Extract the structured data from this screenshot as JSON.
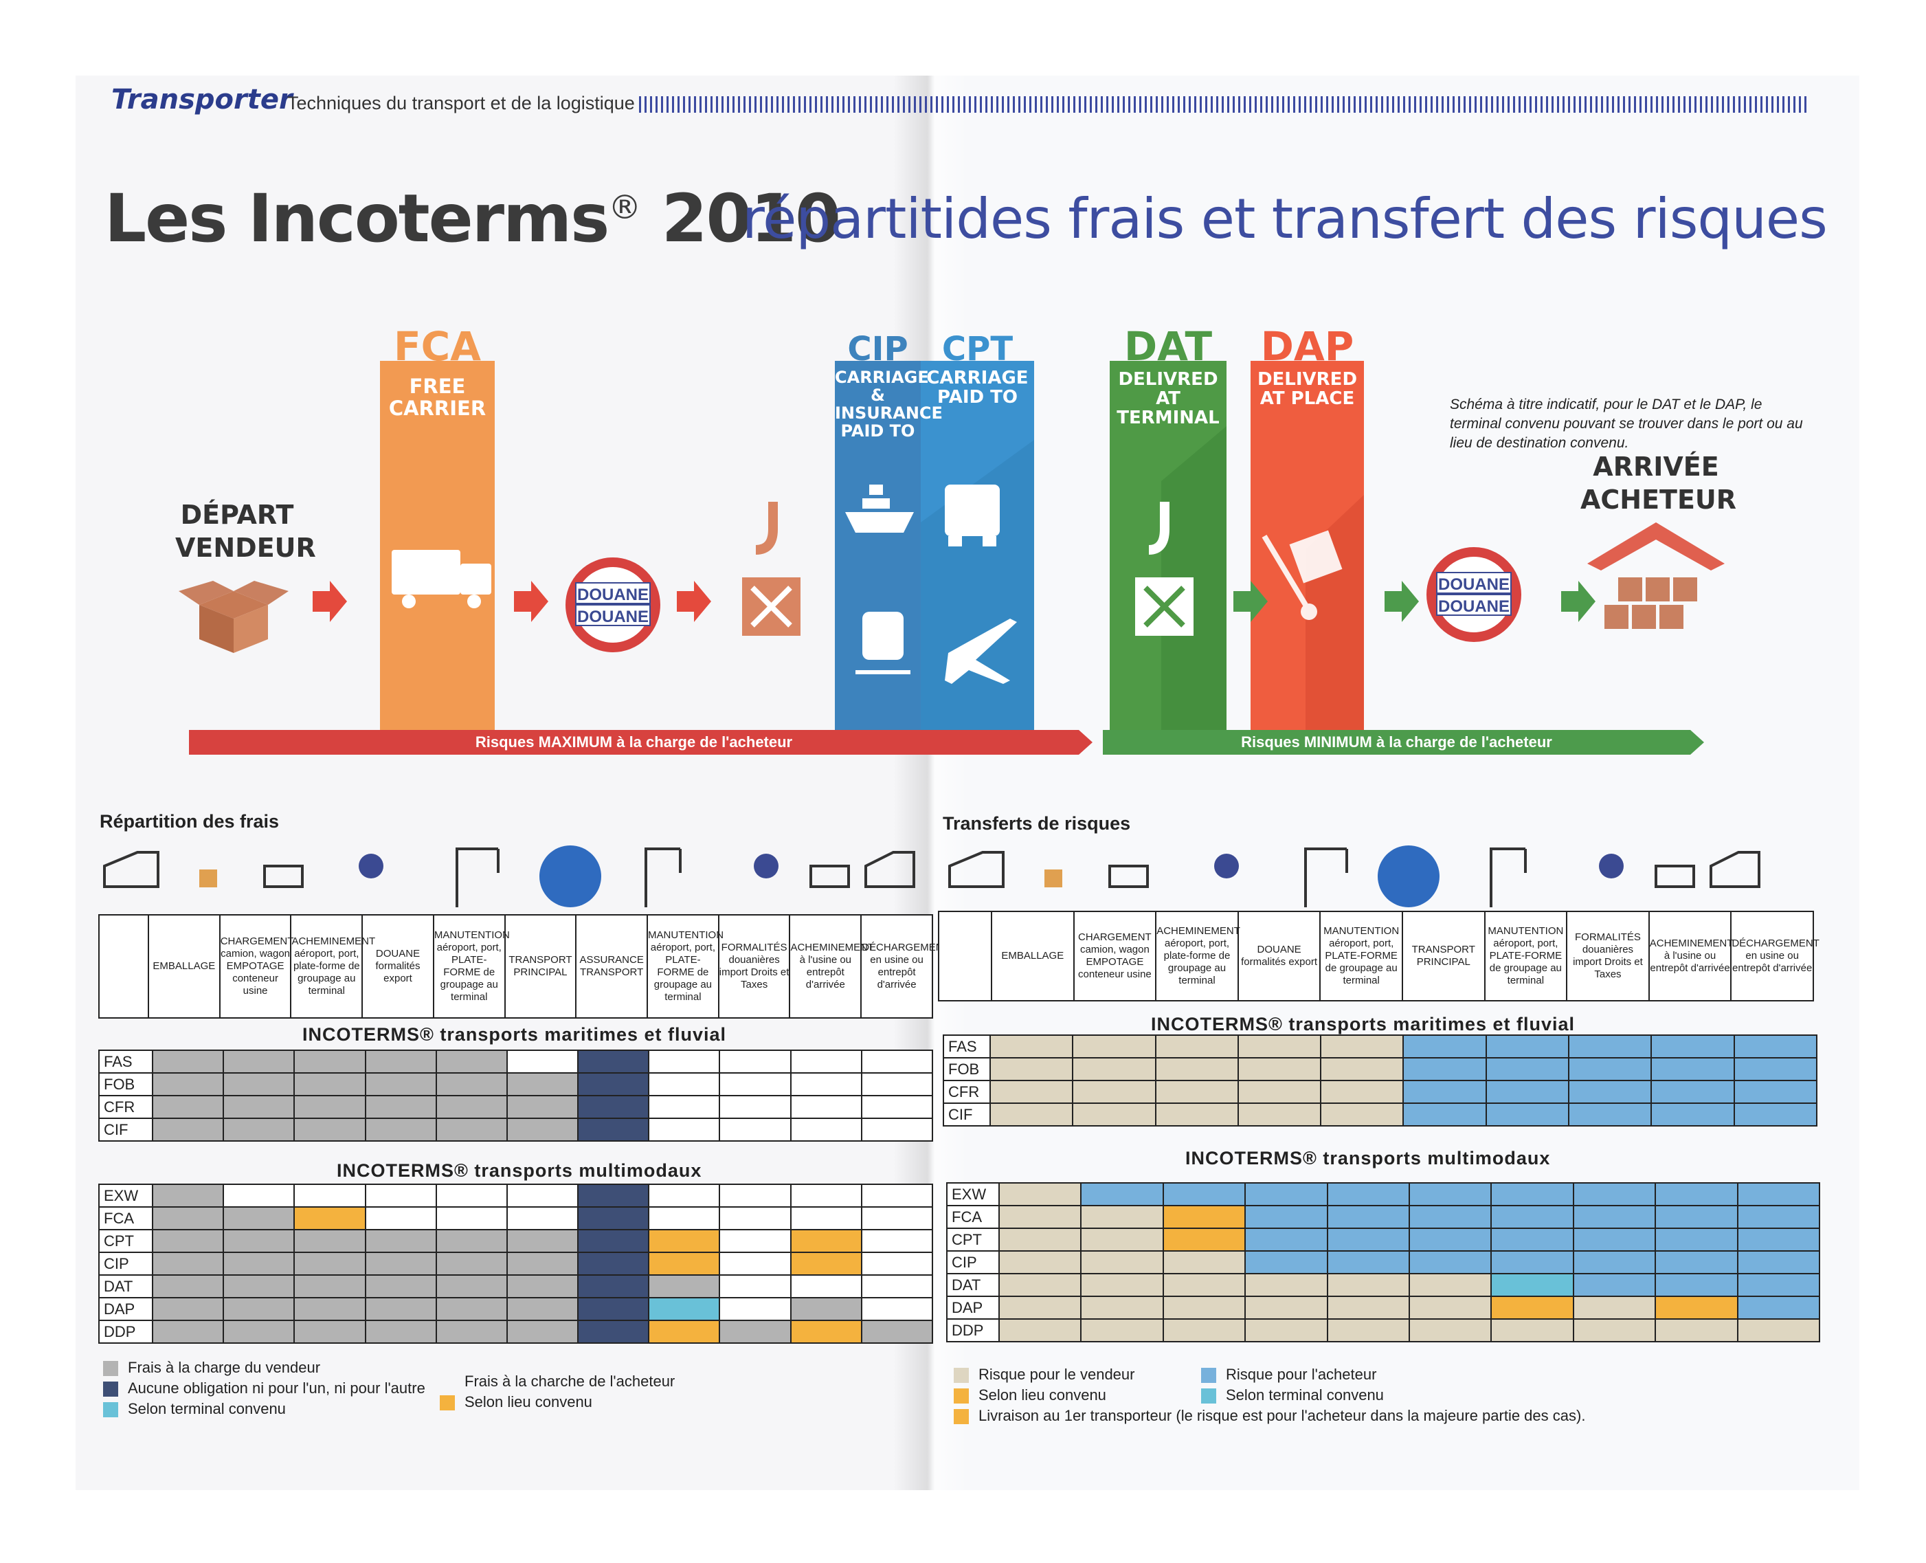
{
  "header": {
    "section": "Transporter",
    "subtitle": "Techniques du transport et de la logistique"
  },
  "title": {
    "main": "Les Incoterms",
    "reg": "®",
    "year": "2010",
    "subtitle": "répartitides frais et transfert des risques"
  },
  "flow": {
    "depart": [
      "DÉPART",
      "VENDEUR"
    ],
    "arrivee": [
      "ARRIVÉE",
      "ACHETEUR"
    ],
    "douane": "DOUANE",
    "terms": [
      {
        "code": "FCA",
        "desc": [
          "FREE",
          "CARRIER"
        ],
        "color": "#f29a52"
      },
      {
        "code": "CIP",
        "desc": [
          "CARRIAGE &",
          "INSURANCE",
          "PAID TO"
        ],
        "color": "#3d83bd"
      },
      {
        "code": "CPT",
        "desc": [
          "CARRIAGE",
          "PAID TO"
        ],
        "color": "#3b92cf"
      },
      {
        "code": "DAT",
        "desc": [
          "DELIVRED",
          "AT TERMINAL"
        ],
        "color": "#4f9a46"
      },
      {
        "code": "DAP",
        "desc": [
          "DELIVRED",
          "AT PLACE"
        ],
        "color": "#ef5d3f"
      }
    ],
    "note": "Schéma à titre indicatif, pour le DAT et le DAP, le terminal convenu pouvant se trouver dans le port ou au lieu de destination convenu.",
    "risk_max": "Risques MAXIMUM à la charge de l'acheteur",
    "risk_min": "Risques MINIMUM à la charge de l'acheteur"
  },
  "colors": {
    "grey": "#b3b3b3",
    "navy": "#3e4f76",
    "lightblue": "#69c1d8",
    "orange": "#f4b23e",
    "beige": "#ded6c1",
    "blue": "#77b1dc",
    "red": "#d7423f",
    "green": "#4d9b4c"
  },
  "frais": {
    "title": "Répartition des frais",
    "columns": [
      "EMBALLAGE",
      "CHARGEMENT camion, wagon EMPOTAGE conteneur usine",
      "ACHEMINEMENT aéroport, port, plate-forme de groupage au terminal",
      "DOUANE formalités export",
      "MANUTENTION aéroport, port, PLATE-FORME de groupage au terminal",
      "TRANSPORT PRINCIPAL",
      "ASSURANCE TRANSPORT",
      "MANUTENTION aéroport, port, PLATE-FORME de groupage au terminal",
      "FORMALITÉS douanières import Droits et Taxes",
      "ACHEMINEMENT à l'usine ou entrepôt d'arrivée",
      "DÉCHARGEMENT en usine ou entrepôt d'arrivée"
    ],
    "maritime_title": "INCOTERMS® transports maritimes et fluvial",
    "maritime_rows": [
      {
        "code": "FAS",
        "cells": [
          "G",
          "G",
          "G",
          "G",
          "G",
          "W",
          "N",
          "W",
          "W",
          "W",
          "W"
        ]
      },
      {
        "code": "FOB",
        "cells": [
          "G",
          "G",
          "G",
          "G",
          "G",
          "G",
          "N",
          "W",
          "W",
          "W",
          "W"
        ]
      },
      {
        "code": "CFR",
        "cells": [
          "G",
          "G",
          "G",
          "G",
          "G",
          "G",
          "N",
          "W",
          "W",
          "W",
          "W"
        ]
      },
      {
        "code": "CIF",
        "cells": [
          "G",
          "G",
          "G",
          "G",
          "G",
          "G",
          "N",
          "W",
          "W",
          "W",
          "W"
        ]
      }
    ],
    "multimodal_title": "INCOTERMS® transports multimodaux",
    "multimodal_rows": [
      {
        "code": "EXW",
        "cells": [
          "G",
          "W",
          "W",
          "W",
          "W",
          "W",
          "N",
          "W",
          "W",
          "W",
          "W"
        ]
      },
      {
        "code": "FCA",
        "cells": [
          "G",
          "G",
          "O",
          "W",
          "W",
          "W",
          "N",
          "W",
          "W",
          "W",
          "W"
        ]
      },
      {
        "code": "CPT",
        "cells": [
          "G",
          "G",
          "G",
          "G",
          "G",
          "G",
          "N",
          "O",
          "W",
          "O",
          "W"
        ]
      },
      {
        "code": "CIP",
        "cells": [
          "G",
          "G",
          "G",
          "G",
          "G",
          "G",
          "N",
          "O",
          "W",
          "O",
          "W"
        ]
      },
      {
        "code": "DAT",
        "cells": [
          "G",
          "G",
          "G",
          "G",
          "G",
          "G",
          "N",
          "G",
          "W",
          "W",
          "W"
        ]
      },
      {
        "code": "DAP",
        "cells": [
          "G",
          "G",
          "G",
          "G",
          "G",
          "G",
          "N",
          "L",
          "W",
          "G",
          "W"
        ]
      },
      {
        "code": "DDP",
        "cells": [
          "G",
          "G",
          "G",
          "G",
          "G",
          "G",
          "N",
          "O",
          "G",
          "O",
          "G"
        ]
      }
    ],
    "legend": {
      "seller": "Frais à la charge du vendeur",
      "none": "Aucune obligation ni pour l'un, ni pour l'autre",
      "terminal": "Selon terminal convenu",
      "buyer": "Frais à la charche de l'acheteur",
      "place": "Selon lieu convenu"
    }
  },
  "risques": {
    "title": "Transferts de risques",
    "columns": [
      "EMBALLAGE",
      "CHARGEMENT camion, wagon EMPOTAGE conteneur usine",
      "ACHEMINEMENT aéroport, port, plate-forme de groupage au terminal",
      "DOUANE formalités export",
      "MANUTENTION aéroport, port, PLATE-FORME de groupage au terminal",
      "TRANSPORT PRINCIPAL",
      "MANUTENTION aéroport, port, PLATE-FORME de groupage au terminal",
      "FORMALITÉS douanières import Droits et Taxes",
      "ACHEMINEMENT à l'usine ou entrepôt d'arrivée",
      "DÉCHARGEMENT en usine ou entrepôt d'arrivée"
    ],
    "maritime_title": "INCOTERMS® transports maritimes et fluvial",
    "maritime_rows": [
      {
        "code": "FAS",
        "cells": [
          "E",
          "E",
          "E",
          "E",
          "E",
          "B",
          "B",
          "B",
          "B",
          "B"
        ]
      },
      {
        "code": "FOB",
        "cells": [
          "E",
          "E",
          "E",
          "E",
          "E",
          "B",
          "B",
          "B",
          "B",
          "B"
        ]
      },
      {
        "code": "CFR",
        "cells": [
          "E",
          "E",
          "E",
          "E",
          "E",
          "B",
          "B",
          "B",
          "B",
          "B"
        ]
      },
      {
        "code": "CIF",
        "cells": [
          "E",
          "E",
          "E",
          "E",
          "E",
          "B",
          "B",
          "B",
          "B",
          "B"
        ]
      }
    ],
    "multimodal_title": "INCOTERMS® transports multimodaux",
    "multimodal_rows": [
      {
        "code": "EXW",
        "cells": [
          "E",
          "B",
          "B",
          "B",
          "B",
          "B",
          "B",
          "B",
          "B",
          "B"
        ]
      },
      {
        "code": "FCA",
        "cells": [
          "E",
          "E",
          "O",
          "B",
          "B",
          "B",
          "B",
          "B",
          "B",
          "B"
        ]
      },
      {
        "code": "CPT",
        "cells": [
          "E",
          "E",
          "O",
          "B",
          "B",
          "B",
          "B",
          "B",
          "B",
          "B"
        ]
      },
      {
        "code": "CIP",
        "cells": [
          "E",
          "E",
          "E",
          "B",
          "B",
          "B",
          "B",
          "B",
          "B",
          "B"
        ]
      },
      {
        "code": "DAT",
        "cells": [
          "E",
          "E",
          "E",
          "E",
          "E",
          "E",
          "L",
          "B",
          "B",
          "B"
        ]
      },
      {
        "code": "DAP",
        "cells": [
          "E",
          "E",
          "E",
          "E",
          "E",
          "E",
          "O",
          "E",
          "O",
          "B"
        ]
      },
      {
        "code": "DDP",
        "cells": [
          "E",
          "E",
          "E",
          "E",
          "E",
          "E",
          "E",
          "E",
          "E",
          "E"
        ]
      }
    ],
    "legend": {
      "seller": "Risque pour le vendeur",
      "place": "Selon lieu convenu",
      "first": "Livraison au 1er transporteur (le risque est pour l'acheteur dans la majeure partie des cas).",
      "buyer": "Risque pour l'acheteur",
      "terminal": "Selon terminal convenu"
    }
  }
}
